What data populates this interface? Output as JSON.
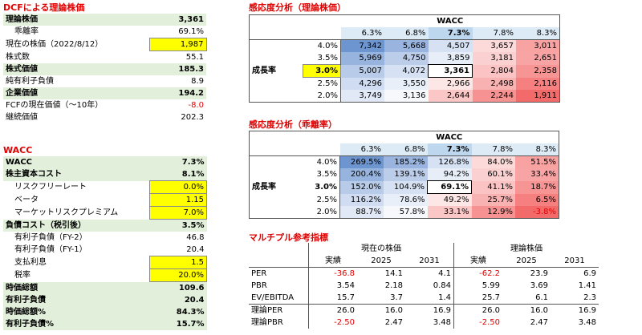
{
  "dcf": {
    "title": "DCFによる理論株価",
    "rows": [
      {
        "label": "理論株価",
        "value": "3,361",
        "style": "hd"
      },
      {
        "label": "乖離率",
        "value": "69.1%",
        "style": "sub"
      },
      {
        "label": "現在の株価（2022/8/12）",
        "value": "1,987",
        "style": "yel"
      },
      {
        "label": "株式数",
        "value": "55.1",
        "style": ""
      },
      {
        "label": "株式価値",
        "value": "185.3",
        "style": "hd"
      },
      {
        "label": "純有利子負債",
        "value": "8.9",
        "style": ""
      },
      {
        "label": "企業価値",
        "value": "194.2",
        "style": "hd"
      },
      {
        "label": "FCFの現在価値（～10年）",
        "value": "-8.0",
        "style": "neg"
      },
      {
        "label": "継続価値",
        "value": "202.3",
        "style": ""
      }
    ]
  },
  "wacc": {
    "title": "WACC",
    "rows": [
      {
        "label": "WACC",
        "value": "7.3%",
        "style": "hd"
      },
      {
        "label": "株主資本コスト",
        "value": "8.1%",
        "style": "hd"
      },
      {
        "label": "リスクフリーレート",
        "value": "0.0%",
        "style": "sub yel"
      },
      {
        "label": "ベータ",
        "value": "1.15",
        "style": "sub yel"
      },
      {
        "label": "マーケットリスクプレミアム",
        "value": "7.0%",
        "style": "sub yel"
      },
      {
        "label": "負債コスト（税引後）",
        "value": "3.5%",
        "style": "hd"
      },
      {
        "label": "有利子負債（FY-2）",
        "value": "46.8",
        "style": "sub"
      },
      {
        "label": "有利子負債（FY-1）",
        "value": "20.4",
        "style": "sub"
      },
      {
        "label": "支払利息",
        "value": "1.5",
        "style": "sub yel"
      },
      {
        "label": "税率",
        "value": "20.0%",
        "style": "sub yel"
      },
      {
        "label": "時価総額",
        "value": "109.6",
        "style": "hd"
      },
      {
        "label": "有利子負債",
        "value": "20.4",
        "style": "hd"
      },
      {
        "label": "時価総額%",
        "value": "84.3%",
        "style": "hd"
      },
      {
        "label": "有利子負債%",
        "value": "15.7%",
        "style": "hd"
      }
    ]
  },
  "sens_price": {
    "title": "感応度分析（理論株価）",
    "wacc_label": "WACC",
    "row_label": "成長率",
    "cols": [
      "6.3%",
      "6.8%",
      "7.3%",
      "7.8%",
      "8.3%"
    ],
    "growth": [
      "4.0%",
      "3.5%",
      "3.0%",
      "2.5%",
      "2.0%"
    ],
    "cells": [
      [
        "7,342",
        "5,668",
        "4,507",
        "3,657",
        "3,011"
      ],
      [
        "5,969",
        "4,750",
        "3,859",
        "3,181",
        "2,651"
      ],
      [
        "5,007",
        "4,072",
        "3,361",
        "2,804",
        "2,358"
      ],
      [
        "4,296",
        "3,550",
        "2,966",
        "2,498",
        "2,116"
      ],
      [
        "3,749",
        "3,136",
        "2,644",
        "2,244",
        "1,911"
      ]
    ],
    "colors": [
      [
        "#6d95cf",
        "#99b5df",
        "#d6e2f3",
        "#fcdada",
        "#f8a2a2"
      ],
      [
        "#97b4df",
        "#bccde9",
        "#e8eef8",
        "#fbd0d0",
        "#f8a4a4"
      ],
      [
        "#b8cbe9",
        "#d6e1f3",
        "#ffffff",
        "#fbc3c3",
        "#f79494"
      ],
      [
        "#cfdcf1",
        "#e9eff8",
        "#fde6e6",
        "#f9b2b2",
        "#f67f7f"
      ],
      [
        "#e2e9f6",
        "#f6f8fc",
        "#fbc6c6",
        "#f79292",
        "#f26a6a"
      ]
    ]
  },
  "sens_dev": {
    "title": "感応度分析（乖離率）",
    "wacc_label": "WACC",
    "row_label": "成長率",
    "cols": [
      "6.3%",
      "6.8%",
      "7.3%",
      "7.8%",
      "8.3%"
    ],
    "growth": [
      "4.0%",
      "3.5%",
      "3.0%",
      "2.5%",
      "2.0%"
    ],
    "cells": [
      [
        "269.5%",
        "185.2%",
        "126.8%",
        "84.0%",
        "51.5%"
      ],
      [
        "200.4%",
        "139.1%",
        "94.2%",
        "60.1%",
        "33.4%"
      ],
      [
        "152.0%",
        "104.9%",
        "69.1%",
        "41.1%",
        "18.7%"
      ],
      [
        "116.2%",
        "78.6%",
        "49.2%",
        "25.7%",
        "6.5%"
      ],
      [
        "88.7%",
        "57.8%",
        "33.1%",
        "12.9%",
        "-3.8%"
      ]
    ],
    "colors": [
      [
        "#6d95cf",
        "#99b5df",
        "#d6e2f3",
        "#fcdada",
        "#f8a2a2"
      ],
      [
        "#97b4df",
        "#bccde9",
        "#e8eef8",
        "#fbd0d0",
        "#f8a4a4"
      ],
      [
        "#b8cbe9",
        "#d6e1f3",
        "#ffffff",
        "#fbc3c3",
        "#f79494"
      ],
      [
        "#cfdcf1",
        "#e9eff8",
        "#fde6e6",
        "#f9b2b2",
        "#f67f7f"
      ],
      [
        "#e2e9f6",
        "#f6f8fc",
        "#fbc6c6",
        "#f79292",
        "#f26a6a"
      ]
    ]
  },
  "multiples": {
    "title": "マルチプル参考指標",
    "group_current": "現在の株価",
    "group_theory": "理論株価",
    "sub_cols": [
      "実績",
      "2025",
      "2031",
      "実績",
      "2025",
      "2031"
    ],
    "rows": [
      {
        "label": "PER",
        "values": [
          "-36.8",
          "14.1",
          "4.1",
          "-62.2",
          "23.9",
          "6.9"
        ]
      },
      {
        "label": "PBR",
        "values": [
          "3.54",
          "2.18",
          "0.84",
          "5.99",
          "3.69",
          "1.41"
        ]
      },
      {
        "label": "EV/EBITDA",
        "values": [
          "15.7",
          "3.7",
          "1.4",
          "25.7",
          "6.1",
          "2.3"
        ]
      },
      {
        "label": "理論PER",
        "values": [
          "26.0",
          "16.0",
          "16.9",
          "26.0",
          "16.0",
          "16.9"
        ]
      },
      {
        "label": "理論PBR",
        "values": [
          "-2.50",
          "2.47",
          "3.48",
          "-2.50",
          "2.47",
          "3.48"
        ]
      }
    ]
  }
}
